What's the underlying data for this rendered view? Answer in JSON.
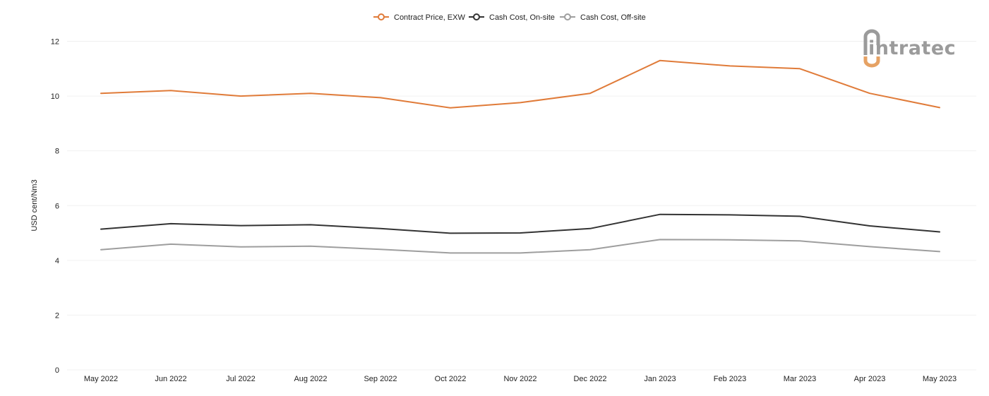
{
  "brand": {
    "logo_text": "intratec",
    "colors": {
      "grey": "#9b9b9b",
      "accent": "#e6a264"
    }
  },
  "chart_data": {
    "type": "line",
    "title": "",
    "xlabel": "",
    "ylabel": "USD cent/Nm3",
    "ylim": [
      0,
      12
    ],
    "yticks": [
      0,
      2,
      4,
      6,
      8,
      10,
      12
    ],
    "grid": true,
    "legend_position": "top-center",
    "categories": [
      "May 2022",
      "Jun 2022",
      "Jul 2022",
      "Aug 2022",
      "Sep 2022",
      "Oct 2022",
      "Nov 2022",
      "Dec 2022",
      "Jan 2023",
      "Feb 2023",
      "Mar 2023",
      "Apr 2023",
      "May 2023"
    ],
    "series": [
      {
        "name": "Contract Price, EXW",
        "color": "#e07b39",
        "values": [
          10.1,
          10.2,
          10.0,
          10.1,
          9.94,
          9.57,
          9.76,
          10.1,
          11.3,
          11.1,
          11.0,
          10.1,
          9.58
        ]
      },
      {
        "name": "Cash Cost, On-site",
        "color": "#333333",
        "values": [
          5.14,
          5.34,
          5.27,
          5.3,
          5.16,
          4.99,
          5.0,
          5.16,
          5.68,
          5.66,
          5.61,
          5.26,
          5.04
        ]
      },
      {
        "name": "Cash Cost, Off-site",
        "color": "#9e9e9e",
        "values": [
          4.39,
          4.59,
          4.49,
          4.52,
          4.4,
          4.27,
          4.27,
          4.39,
          4.76,
          4.75,
          4.71,
          4.5,
          4.32
        ]
      }
    ]
  }
}
